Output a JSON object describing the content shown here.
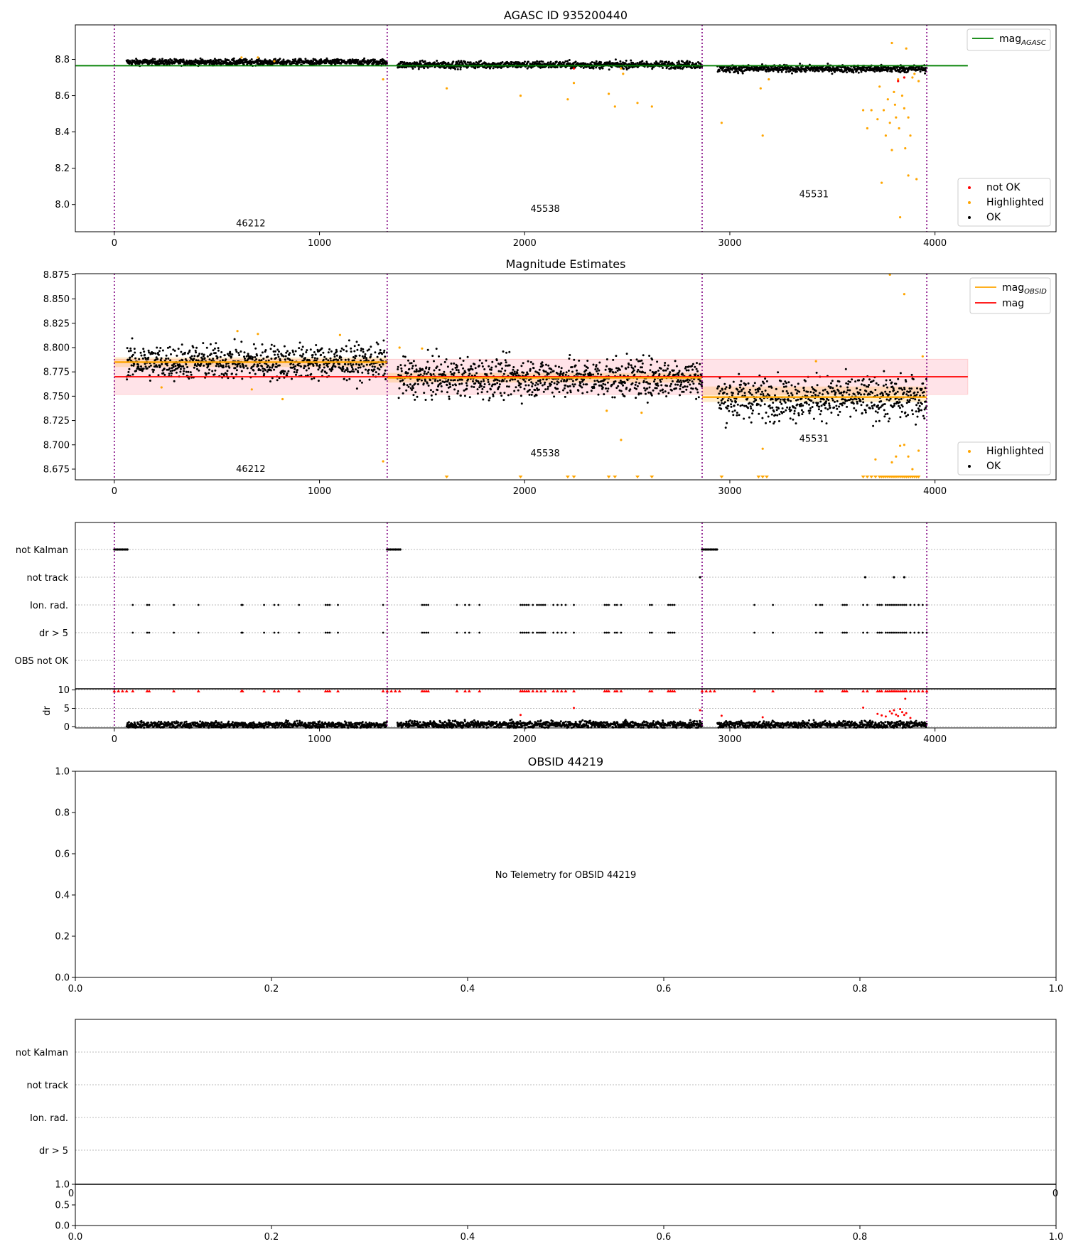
{
  "colors": {
    "ok": "#000000",
    "highlighted": "#ffa500",
    "not_ok": "#ff0000",
    "mag_agasc": "#008000",
    "mag_obsid": "#ffa500",
    "mag": "#ff0000",
    "obs_boundary": "#800080",
    "mag_band": "#ffc0cb"
  },
  "chart_data": [
    {
      "type": "scatter",
      "title": "AGASC ID 935200440",
      "xlim": [
        -190,
        4590
      ],
      "ylim": [
        7.85,
        8.99
      ],
      "xticks": [
        "0",
        "1000",
        "2000",
        "3000",
        "4000"
      ],
      "xtick_values": [
        0,
        1000,
        2000,
        3000,
        4000
      ],
      "yticks": [
        "8.0",
        "8.2",
        "8.4",
        "8.6",
        "8.8"
      ],
      "ytick_values": [
        8.0,
        8.2,
        8.4,
        8.6,
        8.8
      ],
      "obs_boundaries": [
        0,
        1330,
        2865,
        3960
      ],
      "obs_labels": [
        {
          "text": "46212",
          "x": 665,
          "y": 7.88
        },
        {
          "text": "45538",
          "x": 2100,
          "y": 7.96
        },
        {
          "text": "45531",
          "x": 3410,
          "y": 8.04
        }
      ],
      "mag_agasc": {
        "name": "mag",
        "sub": "AGASC",
        "value": 8.765,
        "x": [
          0,
          4160
        ]
      },
      "segments": [
        {
          "x0": 60,
          "x1": 1330,
          "level": 8.785,
          "spread": 0.008,
          "slope": 0
        },
        {
          "x0": 1380,
          "x1": 2865,
          "level": 8.77,
          "spread": 0.01,
          "slope": 0
        },
        {
          "x0": 2940,
          "x1": 3960,
          "level": 8.748,
          "spread": 0.01,
          "slope": 0
        }
      ],
      "highlighted": [
        [
          620,
          8.81
        ],
        [
          700,
          8.81
        ],
        [
          780,
          8.79
        ],
        [
          1310,
          8.69
        ],
        [
          1620,
          8.64
        ],
        [
          1980,
          8.6
        ],
        [
          2210,
          8.58
        ],
        [
          2240,
          8.67
        ],
        [
          2410,
          8.61
        ],
        [
          2440,
          8.54
        ],
        [
          2470,
          8.75
        ],
        [
          2480,
          8.72
        ],
        [
          2550,
          8.56
        ],
        [
          2620,
          8.54
        ],
        [
          2960,
          8.45
        ],
        [
          3160,
          8.38
        ],
        [
          3150,
          8.64
        ],
        [
          3190,
          8.69
        ],
        [
          3650,
          8.52
        ],
        [
          3670,
          8.42
        ],
        [
          3690,
          8.52
        ],
        [
          3720,
          8.47
        ],
        [
          3730,
          8.65
        ],
        [
          3740,
          8.12
        ],
        [
          3750,
          8.52
        ],
        [
          3760,
          8.38
        ],
        [
          3770,
          8.58
        ],
        [
          3780,
          8.45
        ],
        [
          3790,
          8.89
        ],
        [
          3790,
          8.3
        ],
        [
          3800,
          8.62
        ],
        [
          3805,
          8.55
        ],
        [
          3810,
          8.48
        ],
        [
          3820,
          8.69
        ],
        [
          3825,
          8.42
        ],
        [
          3830,
          7.93
        ],
        [
          3840,
          8.6
        ],
        [
          3850,
          8.53
        ],
        [
          3855,
          8.31
        ],
        [
          3860,
          8.86
        ],
        [
          3870,
          8.48
        ],
        [
          3870,
          8.16
        ],
        [
          3880,
          8.38
        ],
        [
          3890,
          8.7
        ],
        [
          3900,
          8.72
        ],
        [
          3910,
          8.14
        ],
        [
          3920,
          8.68
        ]
      ],
      "not_ok": [
        [
          2240,
          8.75
        ],
        [
          3820,
          8.68
        ],
        [
          3850,
          8.7
        ]
      ],
      "legend_line": [
        {
          "name": "mag",
          "sub": "AGASC"
        }
      ],
      "legend_points": [
        "not OK",
        "Highlighted",
        "OK"
      ]
    },
    {
      "type": "scatter",
      "title": "Magnitude Estimates",
      "xlim": [
        -190,
        4590
      ],
      "ylim": [
        8.664,
        8.876
      ],
      "xticks": [
        "0",
        "1000",
        "2000",
        "3000",
        "4000"
      ],
      "xtick_values": [
        0,
        1000,
        2000,
        3000,
        4000
      ],
      "yticks": [
        "8.675",
        "8.700",
        "8.725",
        "8.750",
        "8.775",
        "8.800",
        "8.825",
        "8.850",
        "8.875"
      ],
      "ytick_values": [
        8.675,
        8.7,
        8.725,
        8.75,
        8.775,
        8.8,
        8.825,
        8.85,
        8.875
      ],
      "obs_boundaries": [
        0,
        1330,
        2865,
        3960
      ],
      "obs_labels": [
        {
          "text": "46212",
          "x": 665,
          "y": 8.672
        },
        {
          "text": "45538",
          "x": 2100,
          "y": 8.688
        },
        {
          "text": "45531",
          "x": 3410,
          "y": 8.703
        }
      ],
      "mag": {
        "name": "mag",
        "value": 8.77,
        "band": [
          8.752,
          8.788
        ],
        "x": [
          0,
          4160
        ]
      },
      "mag_obsid": [
        {
          "x": [
            0,
            1330
          ],
          "value": 8.785,
          "band": [
            8.78,
            8.79
          ]
        },
        {
          "x": [
            1330,
            2865
          ],
          "value": 8.769,
          "band": [
            8.764,
            8.774
          ]
        },
        {
          "x": [
            2865,
            3960
          ],
          "value": 8.749,
          "band": [
            8.744,
            8.76
          ]
        }
      ],
      "segments": [
        {
          "x0": 60,
          "x1": 1330,
          "level": 8.785,
          "spread": 0.009,
          "slope": 0
        },
        {
          "x0": 1380,
          "x1": 2865,
          "level": 8.769,
          "spread": 0.01,
          "slope": 0
        },
        {
          "x0": 2940,
          "x1": 3960,
          "level": 8.748,
          "spread": 0.011,
          "slope": 0
        }
      ],
      "highlighted": [
        [
          230,
          8.759
        ],
        [
          600,
          8.817
        ],
        [
          670,
          8.757
        ],
        [
          700,
          8.814
        ],
        [
          820,
          8.747
        ],
        [
          1100,
          8.813
        ],
        [
          1310,
          8.683
        ],
        [
          1390,
          8.8
        ],
        [
          1500,
          8.799
        ],
        [
          2400,
          8.735
        ],
        [
          2470,
          8.705
        ],
        [
          2570,
          8.733
        ],
        [
          3160,
          8.696
        ],
        [
          3420,
          8.786
        ],
        [
          3710,
          8.685
        ],
        [
          3780,
          8.875
        ],
        [
          3790,
          8.682
        ],
        [
          3810,
          8.688
        ],
        [
          3830,
          8.699
        ],
        [
          3850,
          8.855
        ],
        [
          3850,
          8.7
        ],
        [
          3870,
          8.688
        ],
        [
          3890,
          8.675
        ],
        [
          3920,
          8.694
        ],
        [
          3940,
          8.791
        ]
      ],
      "clipped_low": [
        1620,
        1980,
        2210,
        2240,
        2410,
        2440,
        2550,
        2620,
        2960,
        3140,
        3160,
        3180,
        3650,
        3670,
        3690,
        3710,
        3730,
        3740,
        3750,
        3760,
        3770,
        3780,
        3790,
        3800,
        3810,
        3820,
        3830,
        3840,
        3850,
        3860,
        3870,
        3880,
        3890,
        3900,
        3910,
        3920
      ],
      "legend_line": [
        {
          "name": "mag",
          "sub": "OBSID"
        },
        {
          "name": "mag",
          "sub": ""
        }
      ],
      "legend_points": [
        "Highlighted",
        "OK"
      ]
    },
    {
      "type": "scatter",
      "title": "",
      "xlim": [
        -190,
        4590
      ],
      "xticks": [
        "0",
        "1000",
        "2000",
        "3000",
        "4000"
      ],
      "xtick_values": [
        0,
        1000,
        2000,
        3000,
        4000
      ],
      "flags": [
        "not Kalman",
        "not track",
        "Ion. rad.",
        "dr > 5",
        "OBS not OK"
      ],
      "obs_boundaries": [
        0,
        1330,
        2865,
        3960
      ],
      "not_kalman": [
        [
          0,
          70
        ],
        [
          1330,
          1400
        ],
        [
          2865,
          2940
        ]
      ],
      "not_track": [
        2855,
        3660,
        3800,
        3850
      ],
      "ion_rad": [
        90,
        160,
        170,
        290,
        410,
        620,
        625,
        730,
        780,
        800,
        900,
        1030,
        1040,
        1050,
        1090,
        1310,
        1500,
        1510,
        1520,
        1530,
        1670,
        1710,
        1730,
        1780,
        1980,
        1990,
        2000,
        2010,
        2020,
        2040,
        2060,
        2070,
        2080,
        2090,
        2100,
        2140,
        2160,
        2180,
        2200,
        2240,
        2390,
        2400,
        2410,
        2440,
        2450,
        2470,
        2610,
        2620,
        2700,
        2710,
        2720,
        2730,
        3120,
        3210,
        3420,
        3440,
        3450,
        3550,
        3560,
        3570,
        3650,
        3670,
        3720,
        3730,
        3740,
        3760,
        3770,
        3780,
        3790,
        3800,
        3810,
        3820,
        3830,
        3840,
        3850,
        3860,
        3880,
        3900,
        3920,
        3940,
        3960
      ],
      "dr_gt_5": [
        90,
        160,
        170,
        290,
        410,
        620,
        625,
        730,
        780,
        800,
        900,
        1030,
        1040,
        1050,
        1090,
        1310,
        1500,
        1510,
        1520,
        1530,
        1670,
        1710,
        1730,
        1780,
        1980,
        1990,
        2000,
        2010,
        2020,
        2040,
        2060,
        2070,
        2080,
        2090,
        2100,
        2140,
        2160,
        2180,
        2200,
        2240,
        2390,
        2400,
        2410,
        2440,
        2450,
        2470,
        2610,
        2620,
        2700,
        2710,
        2720,
        2730,
        3120,
        3210,
        3420,
        3440,
        3450,
        3550,
        3560,
        3570,
        3650,
        3670,
        3720,
        3730,
        3740,
        3760,
        3770,
        3780,
        3790,
        3800,
        3810,
        3820,
        3830,
        3840,
        3850,
        3860,
        3880,
        3900,
        3920,
        3940,
        3960
      ],
      "obs_not_ok": []
    },
    {
      "type": "scatter",
      "title": "",
      "ylabel": "dr",
      "xlim": [
        -190,
        4590
      ],
      "ylim": [
        -0.3,
        10.3
      ],
      "yticks": [
        "0",
        "5",
        "10"
      ],
      "ytick_values": [
        0,
        5,
        10
      ],
      "clip_top": [
        0,
        20,
        40,
        60,
        90,
        160,
        170,
        290,
        410,
        620,
        625,
        730,
        780,
        800,
        900,
        1030,
        1040,
        1050,
        1090,
        1310,
        1330,
        1350,
        1370,
        1390,
        1500,
        1510,
        1520,
        1530,
        1670,
        1710,
        1730,
        1780,
        1980,
        1990,
        2000,
        2010,
        2020,
        2040,
        2060,
        2080,
        2100,
        2140,
        2160,
        2180,
        2200,
        2240,
        2390,
        2400,
        2410,
        2440,
        2450,
        2470,
        2610,
        2620,
        2700,
        2710,
        2720,
        2730,
        2865,
        2885,
        2905,
        2925,
        3120,
        3210,
        3420,
        3440,
        3450,
        3550,
        3560,
        3570,
        3650,
        3670,
        3720,
        3730,
        3740,
        3760,
        3770,
        3780,
        3790,
        3800,
        3810,
        3820,
        3830,
        3840,
        3850,
        3860,
        3880,
        3900,
        3920,
        3940,
        3960
      ],
      "red_points": [
        [
          1980,
          3.2
        ],
        [
          2240,
          5.1
        ],
        [
          2855,
          4.5
        ],
        [
          2960,
          3.0
        ],
        [
          3160,
          2.6
        ],
        [
          3650,
          5.2
        ],
        [
          3720,
          3.5
        ],
        [
          3740,
          3.1
        ],
        [
          3760,
          2.8
        ],
        [
          3780,
          4.2
        ],
        [
          3790,
          3.6
        ],
        [
          3800,
          4.5
        ],
        [
          3810,
          3.3
        ],
        [
          3820,
          2.9
        ],
        [
          3830,
          4.8
        ],
        [
          3840,
          4.0
        ],
        [
          3850,
          3.2
        ],
        [
          3855,
          7.6
        ],
        [
          3860,
          3.7
        ],
        [
          3880,
          2.4
        ]
      ],
      "segments": [
        {
          "x0": 60,
          "x1": 1330,
          "level": 0.5,
          "spread": 0.45,
          "slope": 0
        },
        {
          "x0": 1380,
          "x1": 2865,
          "level": 0.6,
          "spread": 0.5,
          "slope": 0
        },
        {
          "x0": 2940,
          "x1": 3960,
          "level": 0.6,
          "spread": 0.5,
          "slope": 0
        }
      ]
    },
    {
      "type": "scatter",
      "title": "OBSID 44219",
      "message": "No Telemetry for OBSID 44219",
      "xlim": [
        0,
        1
      ],
      "ylim": [
        0,
        1
      ],
      "xticks": [
        "0.0",
        "0.2",
        "0.4",
        "0.6",
        "0.8",
        "1.0"
      ],
      "yticks": [
        "0.0",
        "0.2",
        "0.4",
        "0.6",
        "0.8",
        "1.0"
      ]
    },
    {
      "type": "scatter",
      "title": "",
      "flags": [
        "not Kalman",
        "not track",
        "Ion. rad.",
        "dr > 5"
      ],
      "hidden_xticks": [
        "0",
        "0"
      ]
    },
    {
      "type": "scatter",
      "title": "",
      "xlim": [
        0,
        1
      ],
      "ylim": [
        0,
        1
      ],
      "xticks": [
        "0.0",
        "0.2",
        "0.4",
        "0.6",
        "0.8",
        "1.0"
      ],
      "yticks": [
        "0.0",
        "0.5",
        "1.0"
      ]
    }
  ]
}
